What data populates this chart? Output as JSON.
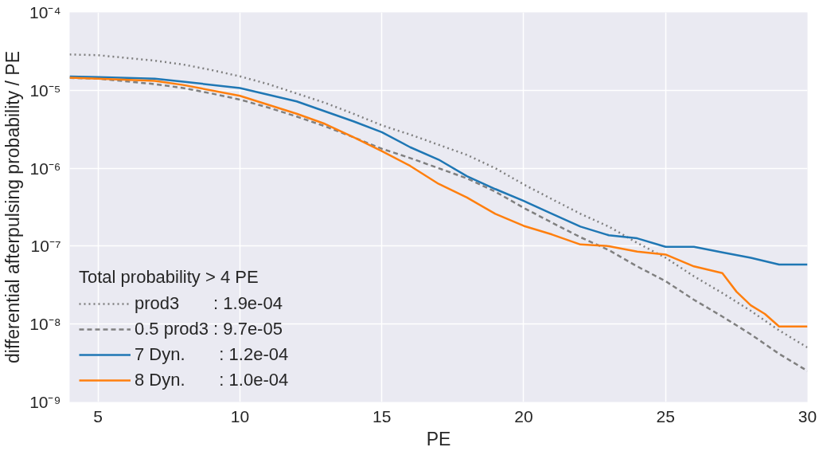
{
  "chart_data": {
    "type": "line",
    "xlabel": "PE",
    "ylabel": "differential afterpulsing probability / PE",
    "log": "y",
    "xlim": [
      4,
      30
    ],
    "xticks": [
      5,
      10,
      15,
      20,
      25,
      30
    ],
    "ylim": [
      1e-09,
      0.0001
    ],
    "yticks": [
      {
        "value": 1e-09,
        "label": "10⁻⁹"
      },
      {
        "value": 1e-08,
        "label": "10⁻⁸"
      },
      {
        "value": 1e-07,
        "label": "10⁻⁷"
      },
      {
        "value": 1e-06,
        "label": "10⁻⁶"
      },
      {
        "value": 1e-05,
        "label": "10⁻⁵"
      },
      {
        "value": 0.0001,
        "label": "10⁻⁴"
      }
    ],
    "grid": true,
    "legend": "bottom left",
    "legend_title": "Total probability > 4 PE",
    "series": [
      {
        "name": "prod3       : 1.9e-04",
        "color": "#808080",
        "line_style": "dotted",
        "x": [
          4,
          5,
          7,
          8,
          9,
          10,
          11,
          12,
          13,
          14,
          15,
          16,
          17,
          18,
          19,
          20,
          21,
          22,
          23,
          24,
          25,
          26,
          27,
          28,
          29,
          30
        ],
        "values": [
          2.88e-05,
          2.82e-05,
          2.4e-05,
          2.14e-05,
          1.82e-05,
          1.51e-05,
          1.2e-05,
          9.1e-06,
          6.9e-06,
          5e-06,
          3.55e-06,
          2.7e-06,
          2e-06,
          1.48e-06,
          1e-06,
          6.2e-07,
          4e-07,
          2.6e-07,
          1.78e-07,
          1.1e-07,
          7.1e-08,
          4.1e-08,
          2.5e-08,
          1.48e-08,
          8.3e-09,
          5e-09
        ]
      },
      {
        "name": "0.5 prod3 : 9.7e-05",
        "color": "#808080",
        "line_style": "dashed",
        "x": [
          4,
          5,
          7,
          8,
          9,
          10,
          11,
          12,
          13,
          14,
          15,
          16,
          17,
          18,
          19,
          20,
          21,
          22,
          23,
          24,
          25,
          26,
          27,
          28,
          29,
          30
        ],
        "values": [
          1.44e-05,
          1.41e-05,
          1.2e-05,
          1.07e-05,
          9.1e-06,
          7.6e-06,
          6e-06,
          4.6e-06,
          3.45e-06,
          2.5e-06,
          1.78e-06,
          1.35e-06,
          1e-06,
          7.4e-07,
          5e-07,
          3.1e-07,
          2e-07,
          1.3e-07,
          8.9e-08,
          5.5e-08,
          3.55e-08,
          2.05e-08,
          1.25e-08,
          7.4e-09,
          4.15e-09,
          2.5e-09
        ]
      },
      {
        "name": "7 Dyn.       : 1.2e-04",
        "color": "#1f77b4",
        "line_style": "solid",
        "x": [
          4,
          5,
          7,
          8,
          10,
          12,
          14,
          15,
          16,
          17,
          18,
          19,
          20,
          21,
          22,
          23,
          24,
          25,
          26,
          27,
          28,
          29,
          30
        ],
        "values": [
          1.5e-05,
          1.48e-05,
          1.41e-05,
          1.29e-05,
          1.07e-05,
          7.2e-06,
          4e-06,
          2.9e-06,
          1.86e-06,
          1.29e-06,
          7.9e-07,
          5.4e-07,
          3.8e-07,
          2.6e-07,
          1.78e-07,
          1.38e-07,
          1.26e-07,
          9.8e-08,
          9.8e-08,
          8.3e-08,
          7.1e-08,
          5.8e-08,
          5.8e-08
        ]
      },
      {
        "name": "8 Dyn.       : 1.0e-04",
        "color": "#ff7f0e",
        "line_style": "solid",
        "x": [
          4,
          5,
          7,
          8,
          10,
          12,
          13,
          14,
          15,
          16,
          17,
          18,
          19,
          20,
          21,
          22,
          23,
          24,
          25,
          26,
          27,
          27.5,
          28,
          28.5,
          29,
          30
        ],
        "values": [
          1.45e-05,
          1.41e-05,
          1.32e-05,
          1.17e-05,
          8.5e-06,
          5e-06,
          3.7e-06,
          2.5e-06,
          1.66e-06,
          1.07e-06,
          6.3e-07,
          4.2e-07,
          2.6e-07,
          1.82e-07,
          1.41e-07,
          1.05e-07,
          1e-07,
          8.5e-08,
          7.8e-08,
          5.5e-08,
          4.5e-08,
          2.6e-08,
          1.74e-08,
          1.35e-08,
          9.3e-09,
          9.3e-09
        ]
      }
    ]
  }
}
